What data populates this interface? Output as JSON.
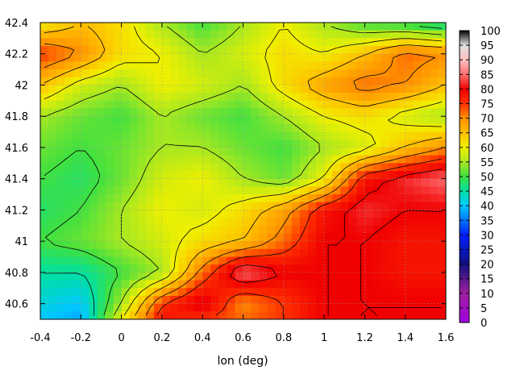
{
  "chart_data": {
    "type": "heatmap",
    "title": "",
    "xlabel": "lon (deg)",
    "ylabel": "",
    "xlim": [
      -0.4,
      1.6
    ],
    "ylim": [
      40.5,
      42.4
    ],
    "x_ticks": [
      -0.4,
      -0.2,
      0,
      0.2,
      0.4,
      0.6,
      0.8,
      1,
      1.2,
      1.4,
      1.6
    ],
    "x_tick_labels": [
      "-0.4",
      "-0.2",
      "0",
      "0.2",
      "0.4",
      "0.6",
      "0.8",
      "1",
      "1.2",
      "1.4",
      "1.6"
    ],
    "y_ticks": [
      40.6,
      40.8,
      41,
      41.2,
      41.4,
      41.6,
      41.8,
      42,
      42.2,
      42.4
    ],
    "y_tick_labels": [
      "40.6",
      "40.8",
      "41",
      "41.2",
      "41.4",
      "41.6",
      "41.8",
      "42",
      "42.2",
      "42.4"
    ],
    "grid": true,
    "contour_lines": true,
    "colorbar": {
      "min": 0,
      "max": 100,
      "ticks": [
        0,
        5,
        10,
        15,
        20,
        25,
        30,
        35,
        40,
        45,
        50,
        55,
        60,
        65,
        70,
        75,
        80,
        85,
        90,
        95,
        100
      ],
      "tick_labels": [
        "0",
        "5",
        "10",
        "15",
        "20",
        "25",
        "30",
        "35",
        "40",
        "45",
        "50",
        "55",
        "60",
        "65",
        "70",
        "75",
        "80",
        "85",
        "90",
        "95",
        "100"
      ],
      "colors": [
        [
          0,
          "#a000e0"
        ],
        [
          10,
          "#a020a0"
        ],
        [
          20,
          "#101080"
        ],
        [
          30,
          "#0020ff"
        ],
        [
          40,
          "#00c8ff"
        ],
        [
          45,
          "#00e0a0"
        ],
        [
          50,
          "#40e040"
        ],
        [
          55,
          "#a8e820"
        ],
        [
          60,
          "#f0f000"
        ],
        [
          65,
          "#ffc000"
        ],
        [
          70,
          "#ff9000"
        ],
        [
          75,
          "#ff3000"
        ],
        [
          80,
          "#f00000"
        ],
        [
          85,
          "#ff7070"
        ],
        [
          90,
          "#ffc0c0"
        ],
        [
          95,
          "#e0e0e0"
        ],
        [
          100,
          "#000000"
        ]
      ]
    },
    "grid_values": {
      "lon": [
        -0.4,
        -0.2,
        0,
        0.2,
        0.4,
        0.6,
        0.8,
        1,
        1.2,
        1.4,
        1.6
      ],
      "lat": [
        42.4,
        42.2,
        42,
        41.8,
        41.6,
        41.4,
        41.2,
        41,
        40.8,
        40.6,
        40.5
      ],
      "values": [
        [
          60,
          65,
          62,
          55,
          50,
          55,
          60,
          55,
          50,
          48,
          45
        ],
        [
          75,
          70,
          62,
          60,
          55,
          58,
          62,
          60,
          65,
          72,
          70
        ],
        [
          65,
          58,
          55,
          60,
          58,
          55,
          62,
          68,
          72,
          70,
          65
        ],
        [
          55,
          52,
          50,
          55,
          52,
          50,
          55,
          60,
          62,
          58,
          55
        ],
        [
          52,
          50,
          52,
          55,
          55,
          52,
          50,
          55,
          58,
          65,
          70
        ],
        [
          50,
          48,
          52,
          58,
          60,
          55,
          52,
          60,
          78,
          82,
          85
        ],
        [
          48,
          50,
          55,
          60,
          58,
          62,
          68,
          78,
          82,
          80,
          80
        ],
        [
          50,
          52,
          55,
          58,
          62,
          65,
          72,
          80,
          80,
          78,
          78
        ],
        [
          45,
          45,
          50,
          55,
          72,
          85,
          80,
          80,
          80,
          78,
          78
        ],
        [
          42,
          40,
          55,
          75,
          82,
          70,
          75,
          80,
          80,
          80,
          80
        ],
        [
          40,
          38,
          60,
          78,
          75,
          72,
          75,
          80,
          80,
          80,
          80
        ]
      ]
    }
  }
}
